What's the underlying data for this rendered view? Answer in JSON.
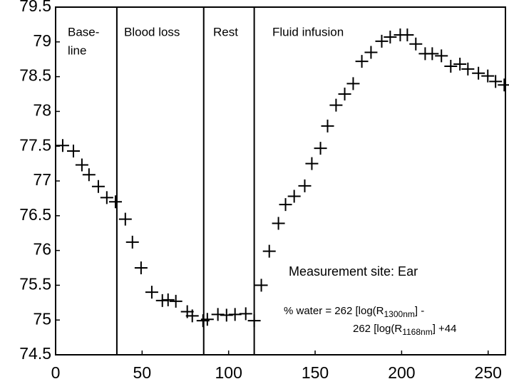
{
  "chart_data": {
    "type": "scatter",
    "x": [
      4.1,
      10.3,
      15.2,
      19.3,
      24.7,
      29.6,
      34.6,
      40.3,
      44.4,
      49.4,
      55.6,
      61.7,
      65.0,
      69.5,
      76.1,
      79.0,
      85.2,
      87.7,
      93.8,
      98.8,
      103.7,
      109.9,
      114.8,
      118.9,
      123.5,
      128.8,
      132.9,
      137.9,
      144.0,
      148.1,
      153.1,
      157.2,
      162.1,
      167.1,
      172.0,
      177.0,
      182.3,
      188.5,
      193.4,
      199.2,
      203.3,
      208.2,
      213.6,
      217.7,
      223.0,
      228.4,
      233.7,
      238.3,
      244.4,
      249.8,
      254.3,
      259.3
    ],
    "values": [
      77.51,
      77.43,
      77.23,
      77.09,
      76.92,
      76.76,
      76.7,
      76.45,
      76.12,
      75.75,
      75.4,
      75.28,
      75.29,
      75.27,
      75.12,
      75.06,
      74.99,
      75.01,
      75.08,
      75.07,
      75.08,
      75.09,
      74.99,
      75.5,
      75.99,
      76.39,
      76.66,
      76.78,
      76.93,
      77.25,
      77.47,
      77.79,
      78.09,
      78.25,
      78.4,
      78.72,
      78.85,
      79.01,
      79.07,
      79.1,
      79.1,
      78.97,
      78.83,
      78.83,
      78.8,
      78.65,
      78.68,
      78.61,
      78.55,
      78.51,
      78.43,
      78.38
    ],
    "color": "#000000",
    "xlim": [
      0,
      260
    ],
    "xticks": [
      0,
      50,
      100,
      150,
      200,
      250
    ],
    "ylim": [
      74.5,
      79.5
    ],
    "yticks": [
      74.5,
      75,
      75.5,
      76,
      76.5,
      77,
      77.5,
      78,
      78.5,
      79,
      79.5
    ],
    "dividers": [
      35.4,
      85.6,
      114.8
    ],
    "phase_labels": [
      [
        "Base-",
        "line"
      ],
      [
        "Blood loss"
      ],
      [
        "Rest"
      ],
      [
        "Fluid infusion"
      ]
    ],
    "annotation": "Measurement site: Ear",
    "formula": {
      "line1": [
        "% water = 262 [log(R",
        "1300nm",
        "] -"
      ],
      "line2": [
        "262 [log(R",
        "1168nm",
        "] +44"
      ]
    }
  }
}
